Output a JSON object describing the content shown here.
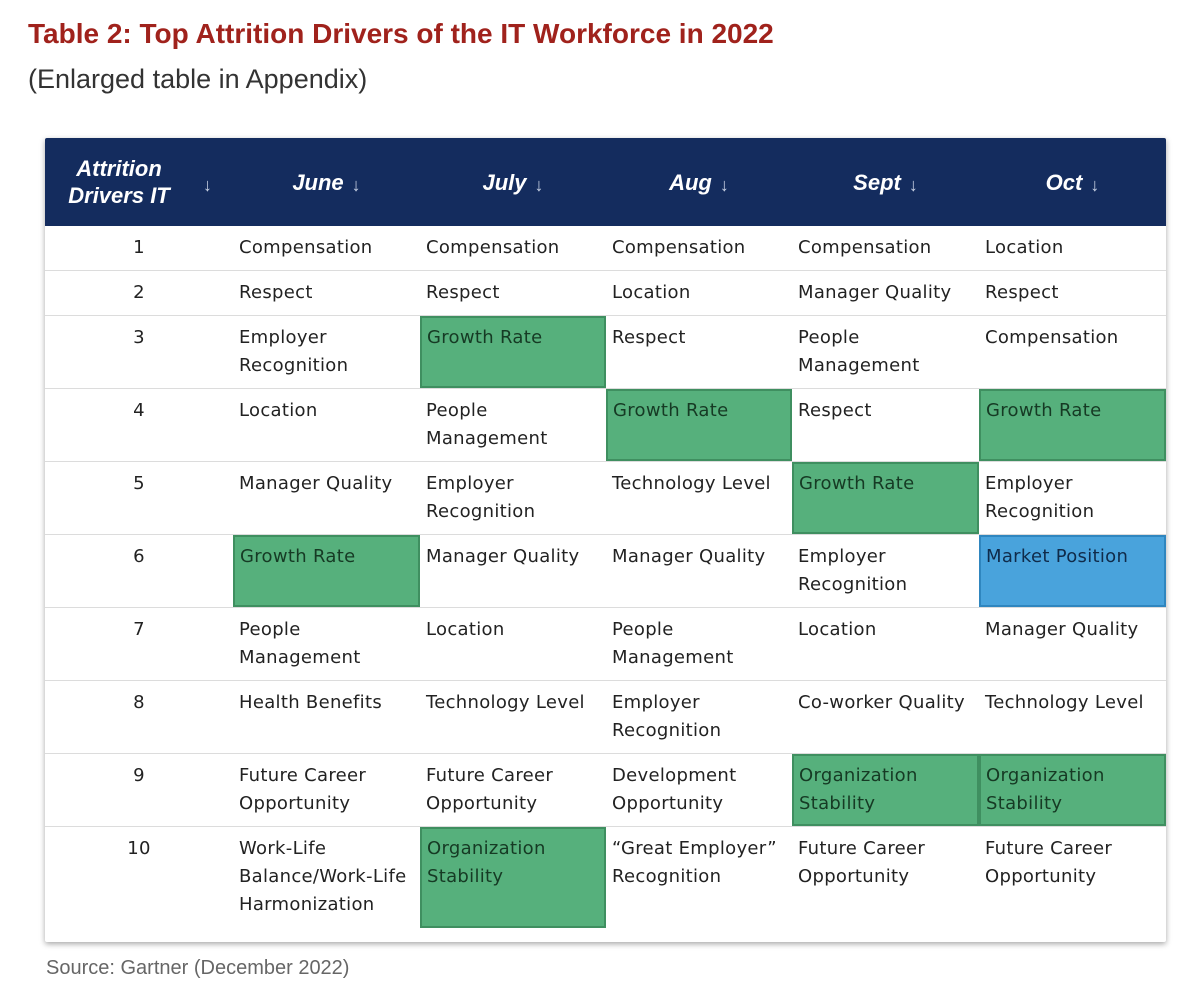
{
  "title": "Table 2: Top Attrition Drivers of the IT Workforce in 2022",
  "subtitle": "(Enlarged table in Appendix)",
  "source": "Source: Gartner (December 2022)",
  "colors": {
    "title": "#a0221c",
    "header_bg": "#142c5e",
    "highlight_green": "#56b07c",
    "highlight_blue": "#49a3dc"
  },
  "header": {
    "col0": "Attrition Drivers IT",
    "col1": "June",
    "col2": "July",
    "col3": "Aug",
    "col4": "Sept",
    "col5": "Oct",
    "sort_icon": "↓"
  },
  "rows": [
    {
      "rank": "1",
      "june": "Compensation",
      "july": "Compensation",
      "aug": "Compensation",
      "sept": "Compensation",
      "oct": "Location"
    },
    {
      "rank": "2",
      "june": "Respect",
      "july": "Respect",
      "aug": "Location",
      "sept": "Manager Quality",
      "oct": "Respect"
    },
    {
      "rank": "3",
      "june": "Employer Recognition",
      "july": "Growth Rate",
      "aug": "Respect",
      "sept": "People Management",
      "oct": "Compensation"
    },
    {
      "rank": "4",
      "june": "Location",
      "july": "People Management",
      "aug": "Growth Rate",
      "sept": "Respect",
      "oct": "Growth Rate"
    },
    {
      "rank": "5",
      "june": "Manager Quality",
      "july": "Employer Recognition",
      "aug": "Technology Level",
      "sept": "Growth Rate",
      "oct": "Employer Recognition"
    },
    {
      "rank": "6",
      "june": "Growth Rate",
      "july": "Manager Quality",
      "aug": "Manager Quality",
      "sept": "Employer Recognition",
      "oct": "Market Position"
    },
    {
      "rank": "7",
      "june": "People Management",
      "july": "Location",
      "aug": "People Management",
      "sept": "Location",
      "oct": "Manager Quality"
    },
    {
      "rank": "8",
      "june": "Health Benefits",
      "july": "Technology Level",
      "aug": "Employer Recognition",
      "sept": "Co-worker Quality",
      "oct": "Technology Level"
    },
    {
      "rank": "9",
      "june": "Future Career Opportunity",
      "july": "Future Career Opportunity",
      "aug": "Development Opportunity",
      "sept": "Organization Stability",
      "oct": "Organization Stability"
    },
    {
      "rank": "10",
      "june": "Work-Life Balance/Work-Life Harmonization",
      "july": "Organization Stability",
      "aug": "“Great Employer” Recognition",
      "sept": "Future Career Opportunity",
      "oct": "Future Career Opportunity"
    }
  ]
}
